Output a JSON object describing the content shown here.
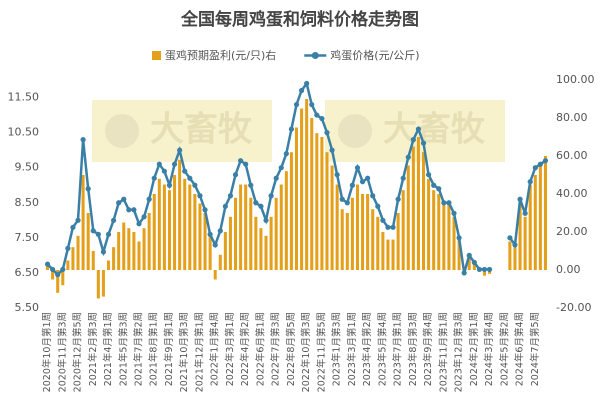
{
  "chart_data": {
    "type": "combo",
    "title": "全国每周鸡蛋和饲料价格走势图",
    "watermark": "大畜牧",
    "grid": false,
    "categories": [
      "2020年10月第1周",
      null,
      null,
      "2020年11月第3周",
      null,
      null,
      "2020年12月第5周",
      null,
      null,
      "2021年2月第3周",
      null,
      null,
      "2021年4月第1周",
      null,
      null,
      "2021年5月第3周",
      null,
      null,
      "2021年7月第2周",
      null,
      null,
      "2021年8月第1周",
      null,
      null,
      "2021年9月第1周",
      null,
      null,
      "2021年10月第3周",
      null,
      null,
      "2021年12月第1周",
      null,
      null,
      "2022年1月第4周",
      null,
      null,
      "2022年3月第1周",
      null,
      null,
      "2022年4月第2周",
      null,
      null,
      "2022年6月第1周",
      null,
      null,
      "2022年7月第3周",
      null,
      null,
      "2022年8月第5周",
      null,
      null,
      "2022年10月第3周",
      null,
      null,
      "2022年11月第5周",
      null,
      null,
      "2023年1月第3周",
      null,
      null,
      "2023年3月第1周",
      null,
      null,
      "2023年4月第2周",
      null,
      null,
      "2023年5月第4周",
      null,
      null,
      "2023年7月第1周",
      null,
      null,
      "2023年8月第3周",
      null,
      null,
      "2023年9月第4周",
      null,
      null,
      "2023年11月第1周",
      null,
      null,
      "2023年12月第3周",
      null,
      null,
      "2024年2月第1周",
      null,
      null,
      "2024年3月第4周",
      null,
      null,
      "2024年5月第2周",
      null,
      null,
      "2024年6月第4周",
      null,
      null,
      "2024年7月第5周",
      null,
      null
    ],
    "series": [
      {
        "name": "蛋鸡预期盈利(元/只)右",
        "type": "bar",
        "axis": "y2",
        "color": "#e5a01b",
        "values": [
          2,
          -5,
          -12,
          -8,
          5,
          12,
          18,
          50,
          30,
          10,
          -15,
          -14,
          5,
          12,
          20,
          25,
          22,
          20,
          15,
          22,
          30,
          40,
          48,
          45,
          42,
          50,
          58,
          48,
          45,
          40,
          35,
          30,
          18,
          -5,
          8,
          20,
          28,
          38,
          45,
          45,
          38,
          28,
          22,
          18,
          28,
          38,
          45,
          52,
          62,
          75,
          85,
          90,
          80,
          72,
          70,
          62,
          55,
          45,
          32,
          30,
          38,
          45,
          40,
          40,
          32,
          28,
          20,
          16,
          16,
          30,
          42,
          55,
          65,
          70,
          62,
          48,
          42,
          40,
          35,
          35,
          28,
          18,
          -2,
          8,
          5,
          0,
          -3,
          -2,
          null,
          null,
          null,
          15,
          12,
          35,
          28,
          45,
          50,
          55,
          60
        ]
      },
      {
        "name": "鸡蛋价格(元/公斤)",
        "type": "line",
        "axis": "y",
        "color": "#3a7fa6",
        "values": [
          6.75,
          6.6,
          6.45,
          6.6,
          7.2,
          7.8,
          8.0,
          10.3,
          8.9,
          7.7,
          7.6,
          7.1,
          7.6,
          8.0,
          8.5,
          8.6,
          8.3,
          8.3,
          7.9,
          8.1,
          8.6,
          9.2,
          9.6,
          9.4,
          9.0,
          9.6,
          10.0,
          9.4,
          9.2,
          9.0,
          8.7,
          8.3,
          7.6,
          7.3,
          7.7,
          8.4,
          8.7,
          9.3,
          9.7,
          9.6,
          9.0,
          8.5,
          8.4,
          8.0,
          8.7,
          9.2,
          9.5,
          9.9,
          10.6,
          11.3,
          11.7,
          11.9,
          11.3,
          11.0,
          10.9,
          10.5,
          10.0,
          9.3,
          8.6,
          8.5,
          9.0,
          9.5,
          9.1,
          9.2,
          8.7,
          8.4,
          8.0,
          7.8,
          7.8,
          8.6,
          9.2,
          9.8,
          10.3,
          10.6,
          10.2,
          9.3,
          9.0,
          8.9,
          8.5,
          8.5,
          8.2,
          7.5,
          6.5,
          7.0,
          6.8,
          6.6,
          6.6,
          6.6,
          null,
          null,
          null,
          7.5,
          7.3,
          8.6,
          8.2,
          9.1,
          9.5,
          9.6,
          9.7
        ]
      }
    ],
    "ylim": [
      5.5,
      12.0
    ],
    "yticks": [
      {
        "value": 5.5,
        "label": "5.50"
      },
      {
        "value": 6.5,
        "label": "6.50"
      },
      {
        "value": 7.5,
        "label": "7.50"
      },
      {
        "value": 8.5,
        "label": "8.50"
      },
      {
        "value": 9.5,
        "label": "9.50"
      },
      {
        "value": 10.5,
        "label": "10.50"
      },
      {
        "value": 11.5,
        "label": "11.50"
      }
    ],
    "y2lim": [
      -20,
      100
    ],
    "y2ticks": [
      {
        "value": -20,
        "label": "-20.00"
      },
      {
        "value": 0,
        "label": "0.00"
      },
      {
        "value": 20,
        "label": "20.00"
      },
      {
        "value": 40,
        "label": "40.00"
      },
      {
        "value": 60,
        "label": "60.00"
      },
      {
        "value": 80,
        "label": "80.00"
      },
      {
        "value": 100,
        "label": "100.00"
      }
    ]
  }
}
